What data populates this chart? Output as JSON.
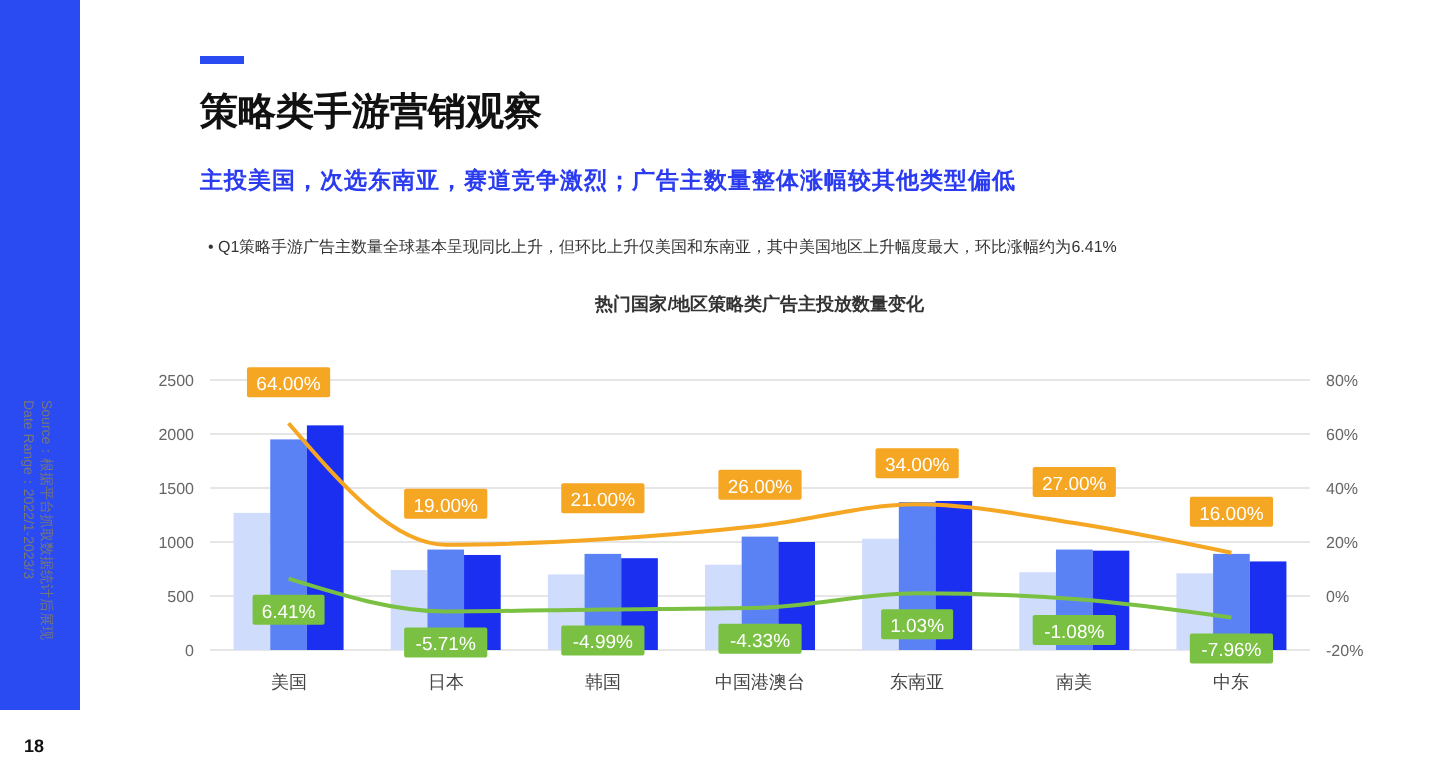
{
  "chart_data": {
    "type": "bar",
    "title": "策略类手游营销观察",
    "subtitle": "主投美国，次选东南亚，赛道竞争激烈；广告主数量整体涨幅较其他类型偏低",
    "annotations": [
      "• Q1策略手游广告主数量全球基本呈现同比上升，但环比上升仅美国和东南亚，其中美国地区上升幅度最大，环比涨幅约为6.41%",
      "热门国家/地区策略类广告主投放数量变化",
      "Source：根据平台抓取数据统计后展现",
      "Date Range：2022/1-2023/3",
      "18"
    ],
    "categories": [
      "美国",
      "日本",
      "韩国",
      "中国港澳台",
      "东南亚",
      "南美",
      "中东"
    ],
    "series": [
      {
        "color": "#cfdcfb",
        "values": [
          1270,
          740,
          700,
          790,
          1030,
          720,
          710
        ]
      },
      {
        "color": "#5b82f5",
        "values": [
          1950,
          930,
          890,
          1050,
          1370,
          930,
          890
        ]
      },
      {
        "color": "#1a2ff0",
        "values": [
          2080,
          880,
          850,
          1000,
          1380,
          920,
          820
        ]
      },
      {
        "type": "line",
        "axis": "y2",
        "color": "#f5a623",
        "values": [
          64,
          19,
          21,
          26,
          34,
          27,
          16
        ],
        "value_labels": [
          "64.00%",
          "19.00%",
          "21.00%",
          "26.00%",
          "34.00%",
          "27.00%",
          "16.00%"
        ]
      },
      {
        "type": "line",
        "axis": "y2",
        "color": "#7ac143",
        "values": [
          6.41,
          -5.71,
          -4.99,
          -4.33,
          1.03,
          -1.08,
          -7.96
        ],
        "value_labels": [
          "6.41%",
          "-5.71%",
          "-4.99%",
          "-4.33%",
          "1.03%",
          "-1.08%",
          "-7.96%"
        ]
      }
    ],
    "ylim": [
      0,
      2500
    ],
    "yticks": [
      0,
      500,
      1000,
      1500,
      2000,
      2500
    ],
    "y2lim": [
      -20,
      80
    ],
    "y2ticks": [
      {
        "value": -20,
        "label": "-20%"
      },
      {
        "value": 0,
        "label": "0%"
      },
      {
        "value": 20,
        "label": "20%"
      },
      {
        "value": 40,
        "label": "40%"
      },
      {
        "value": 60,
        "label": "60%"
      },
      {
        "value": 80,
        "label": "80%"
      }
    ],
    "grid": "y"
  }
}
